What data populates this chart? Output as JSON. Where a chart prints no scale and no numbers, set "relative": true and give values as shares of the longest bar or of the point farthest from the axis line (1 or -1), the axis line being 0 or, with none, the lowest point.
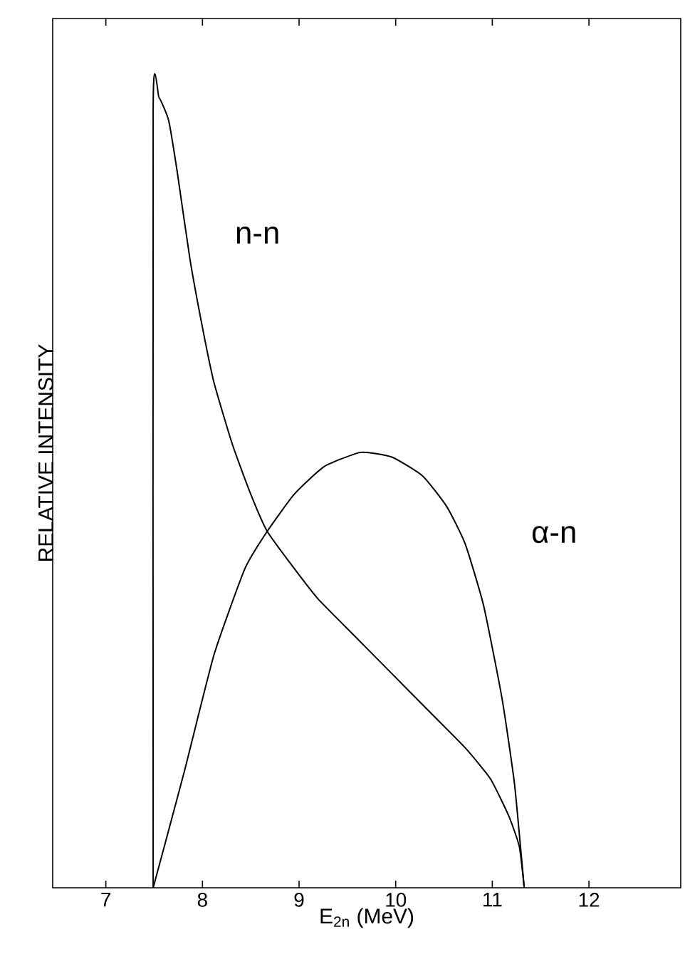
{
  "chart_data": {
    "type": "line",
    "relative": true,
    "xlabel": "E$_{2n}$ (MeV)",
    "ylabel": "RELATIVE INTENSITY",
    "xlim": [
      6.45,
      12.95
    ],
    "xticks": [
      7,
      8,
      9,
      10,
      11,
      12
    ],
    "grid": false,
    "legend": false,
    "marker": "none",
    "line_style": "solid",
    "series": [
      {
        "name": "n-n",
        "color": "#000000",
        "x": [
          7.49,
          7.49,
          7.55,
          7.65,
          7.74,
          7.87,
          8.0,
          8.12,
          8.31,
          8.5,
          8.67,
          8.95,
          9.2,
          9.58,
          9.96,
          10.34,
          10.72,
          10.98,
          11.17,
          11.28,
          11.33
        ],
        "values": [
          0,
          0.99,
          1.0,
          0.971,
          0.905,
          0.796,
          0.709,
          0.639,
          0.561,
          0.498,
          0.451,
          0.404,
          0.365,
          0.318,
          0.271,
          0.224,
          0.177,
          0.138,
          0.091,
          0.052,
          0
        ]
      },
      {
        "name": "α-n",
        "color": "#000000",
        "x": [
          7.49,
          7.81,
          8.12,
          8.44,
          8.67,
          8.95,
          9.26,
          9.64,
          9.96,
          10.28,
          10.53,
          10.72,
          10.91,
          11.1,
          11.23,
          11.33
        ],
        "values": [
          0,
          0.146,
          0.295,
          0.404,
          0.451,
          0.498,
          0.533,
          0.551,
          0.545,
          0.521,
          0.482,
          0.435,
          0.357,
          0.24,
          0.131,
          0
        ]
      }
    ]
  }
}
